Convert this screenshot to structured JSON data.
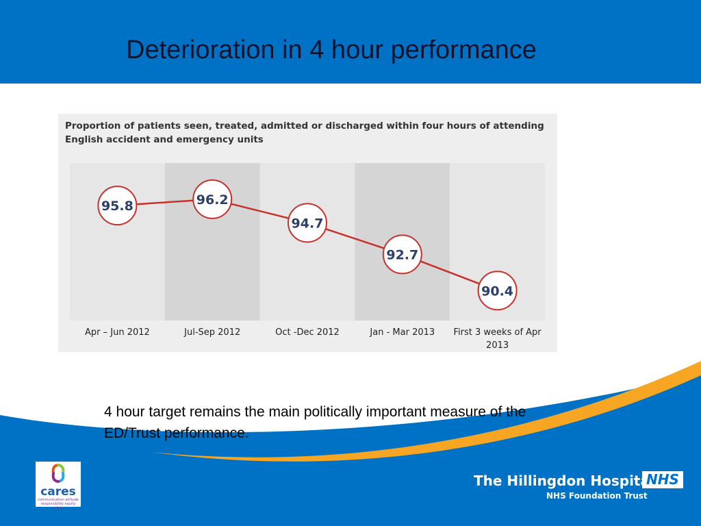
{
  "slide": {
    "title": "Deterioration in 4 hour performance",
    "caption": "4 hour target remains the main politically important measure of the ED/Trust performance."
  },
  "chart_data": {
    "type": "line",
    "title": "Proportion of patients seen, treated, admitted or discharged within four hours of attending English accident and emergency units",
    "categories": [
      "Apr – Jun 2012",
      "Jul-Sep 2012",
      "Oct -Dec 2012",
      "Jan - Mar 2013",
      "First 3 weeks of Apr 2013"
    ],
    "category_lines": [
      [
        "Apr – Jun 2012"
      ],
      [
        "Jul-Sep 2012"
      ],
      [
        "Oct -Dec 2012"
      ],
      [
        "Jan - Mar 2013"
      ],
      [
        "First 3 weeks of Apr",
        "2013"
      ]
    ],
    "values": [
      95.8,
      96.2,
      94.7,
      92.7,
      90.4
    ],
    "data_labels": [
      "95.8",
      "96.2",
      "94.7",
      "92.7",
      "90.4"
    ],
    "ylim": [
      88.5,
      98.5
    ],
    "grid": false,
    "line_color": "#c8302a",
    "band_colors": [
      "#e6e6e6",
      "#d5d5d5"
    ]
  },
  "branding": {
    "cares_logo": {
      "word": "cares",
      "tagline_1": "communication attitude",
      "tagline_2": "responsibility equity safety"
    },
    "org_name": "The Hillingdon Hospitals",
    "org_sub": "NHS Foundation Trust",
    "nhs_logo": "NHS",
    "colors": {
      "nhs_blue": "#0072c6",
      "accent_orange": "#f6a623"
    }
  }
}
